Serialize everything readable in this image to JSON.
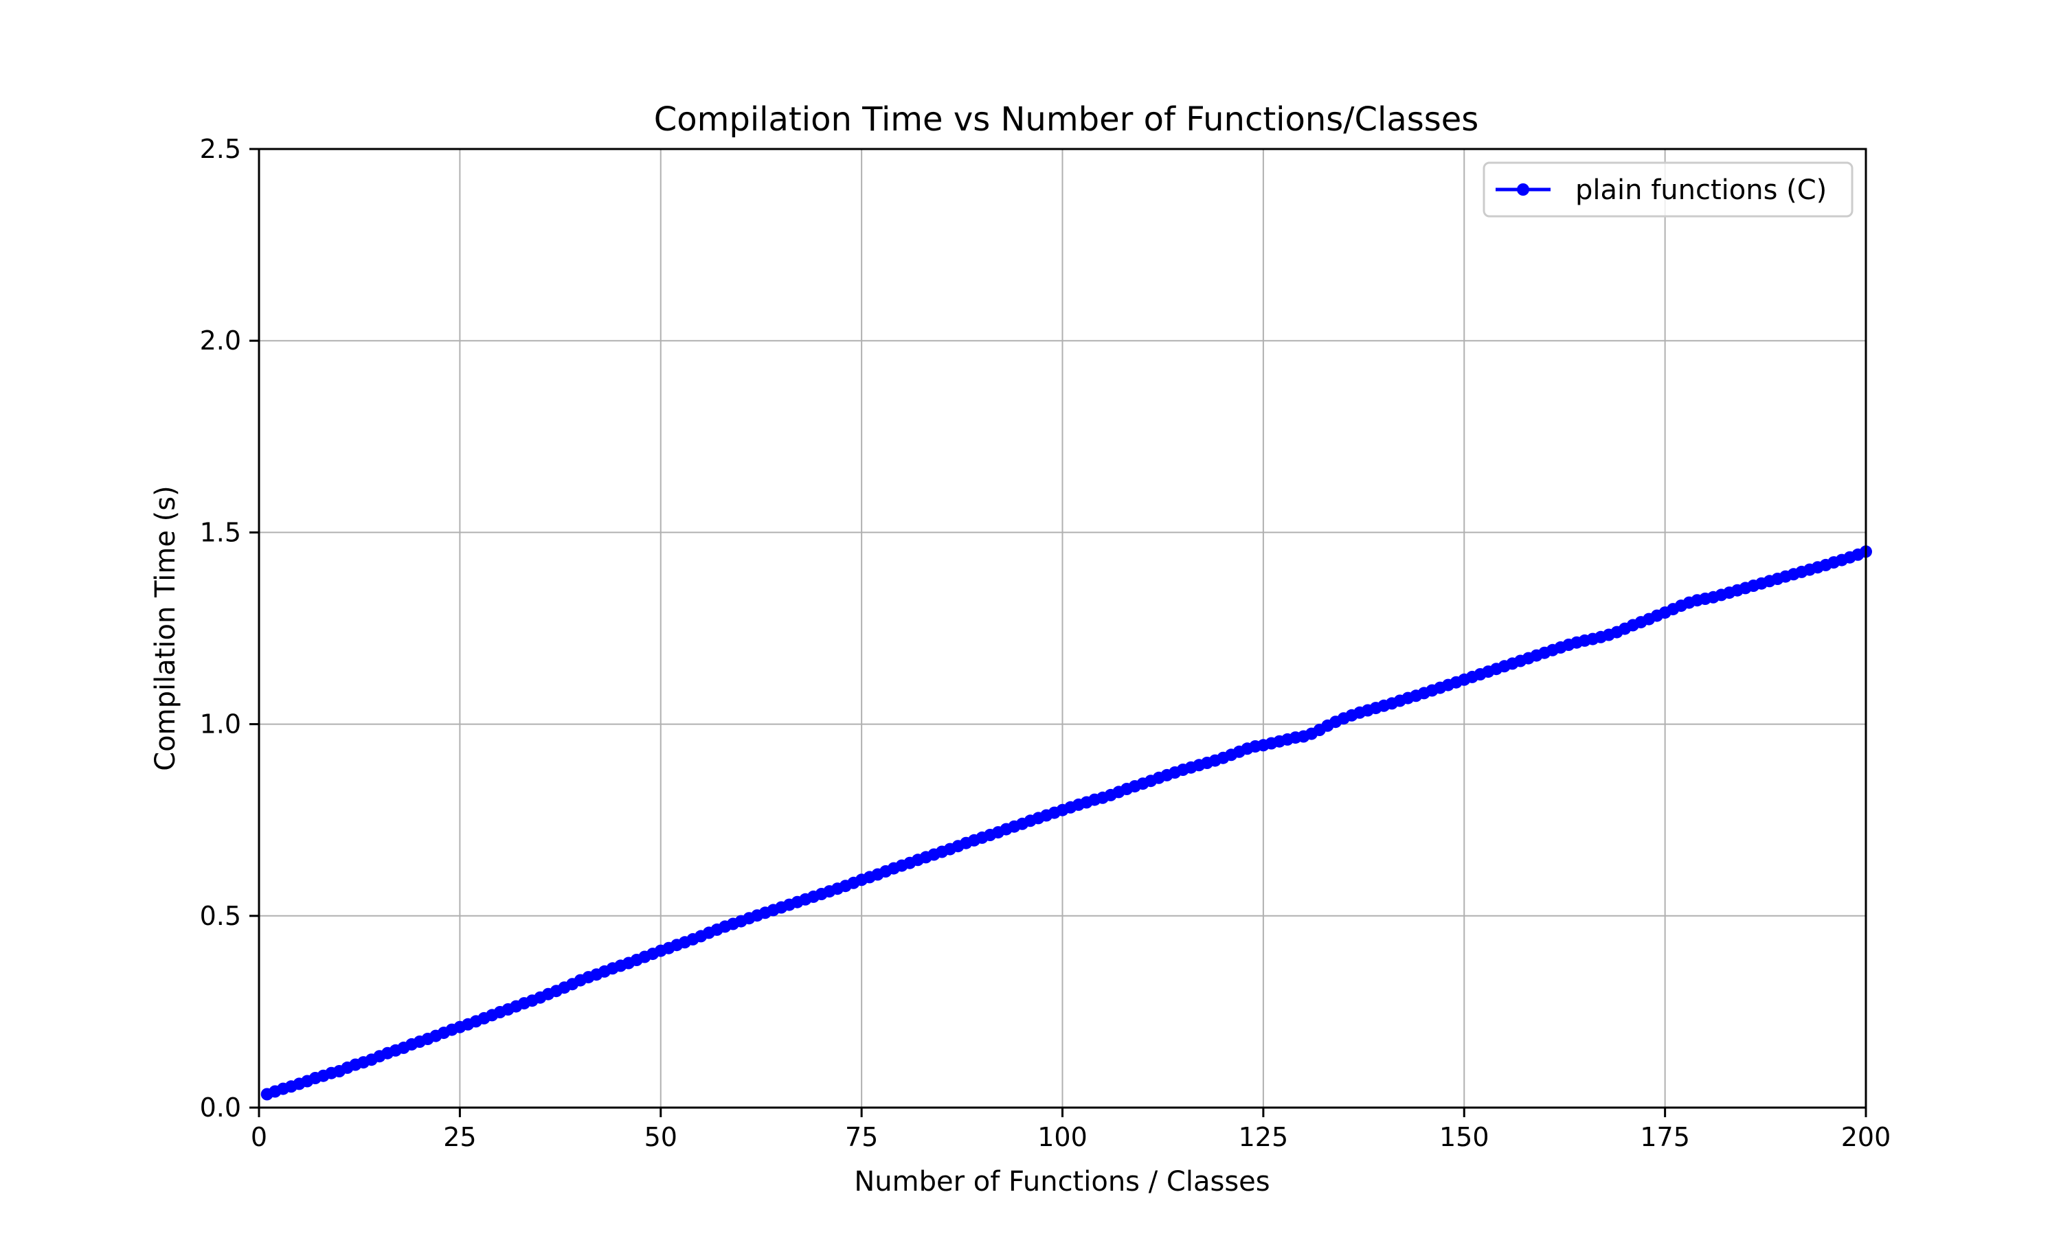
{
  "chart_data": {
    "type": "line",
    "title": "Compilation Time vs Number of Functions/Classes",
    "xlabel": "Number of Functions / Classes",
    "ylabel": "Compilation Time (s)",
    "xlim": [
      0,
      200
    ],
    "ylim": [
      0,
      2.5
    ],
    "xticks": [
      0,
      25,
      50,
      75,
      100,
      125,
      150,
      175,
      200
    ],
    "yticks": [
      0.0,
      0.5,
      1.0,
      1.5,
      2.0,
      2.5
    ],
    "xtick_labels": [
      "0",
      "25",
      "50",
      "75",
      "100",
      "125",
      "150",
      "175",
      "200"
    ],
    "ytick_labels": [
      "0.0",
      "0.5",
      "1.0",
      "1.5",
      "2.0",
      "2.5"
    ],
    "grid": true,
    "legend_position": "top-right",
    "series": [
      {
        "name": "plain functions (C)",
        "color": "#0000ff",
        "marker": "circle",
        "x_start": 1,
        "x_end": 200,
        "x_step": 1,
        "y": [
          0.035,
          0.042,
          0.049,
          0.055,
          0.062,
          0.069,
          0.077,
          0.083,
          0.09,
          0.095,
          0.104,
          0.112,
          0.118,
          0.125,
          0.134,
          0.142,
          0.149,
          0.156,
          0.165,
          0.172,
          0.179,
          0.187,
          0.195,
          0.203,
          0.21,
          0.217,
          0.225,
          0.233,
          0.241,
          0.249,
          0.256,
          0.264,
          0.272,
          0.279,
          0.287,
          0.296,
          0.304,
          0.313,
          0.322,
          0.332,
          0.34,
          0.347,
          0.355,
          0.363,
          0.37,
          0.377,
          0.385,
          0.393,
          0.401,
          0.409,
          0.416,
          0.424,
          0.431,
          0.439,
          0.447,
          0.456,
          0.464,
          0.472,
          0.479,
          0.486,
          0.494,
          0.501,
          0.508,
          0.515,
          0.522,
          0.529,
          0.536,
          0.543,
          0.55,
          0.557,
          0.564,
          0.571,
          0.578,
          0.586,
          0.594,
          0.601,
          0.608,
          0.616,
          0.624,
          0.631,
          0.638,
          0.646,
          0.653,
          0.66,
          0.667,
          0.674,
          0.682,
          0.69,
          0.697,
          0.704,
          0.711,
          0.718,
          0.726,
          0.733,
          0.74,
          0.748,
          0.755,
          0.762,
          0.769,
          0.776,
          0.783,
          0.79,
          0.796,
          0.803,
          0.808,
          0.815,
          0.823,
          0.831,
          0.838,
          0.845,
          0.852,
          0.86,
          0.867,
          0.874,
          0.881,
          0.887,
          0.893,
          0.899,
          0.905,
          0.912,
          0.92,
          0.928,
          0.936,
          0.942,
          0.945,
          0.95,
          0.955,
          0.96,
          0.965,
          0.968,
          0.975,
          0.985,
          0.996,
          1.006,
          1.015,
          1.023,
          1.03,
          1.036,
          1.042,
          1.048,
          1.054,
          1.061,
          1.068,
          1.074,
          1.081,
          1.088,
          1.095,
          1.102,
          1.109,
          1.116,
          1.123,
          1.13,
          1.137,
          1.144,
          1.151,
          1.158,
          1.165,
          1.172,
          1.179,
          1.186,
          1.193,
          1.2,
          1.207,
          1.213,
          1.218,
          1.222,
          1.227,
          1.233,
          1.24,
          1.249,
          1.258,
          1.266,
          1.274,
          1.283,
          1.291,
          1.3,
          1.309,
          1.317,
          1.323,
          1.327,
          1.331,
          1.337,
          1.343,
          1.349,
          1.355,
          1.361,
          1.367,
          1.373,
          1.379,
          1.385,
          1.391,
          1.397,
          1.403,
          1.409,
          1.415,
          1.422,
          1.428,
          1.435,
          1.442,
          1.45
        ]
      }
    ]
  }
}
